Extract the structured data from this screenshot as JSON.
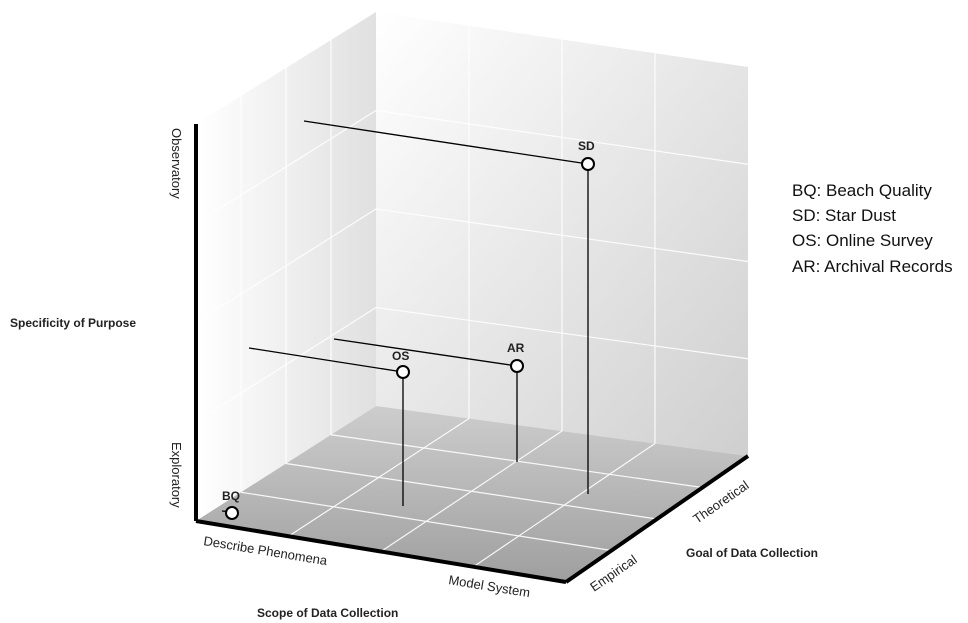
{
  "axes": {
    "vertical": {
      "title": "Specificity of Purpose",
      "low_label": "Exploratory",
      "high_label": "Observatory"
    },
    "front": {
      "title": "Scope of Data Collection",
      "low_label": "Describe Phenomena",
      "high_label": "Model System"
    },
    "depth": {
      "title": "Goal of Data Collection",
      "low_label": "Empirical",
      "high_label": "Theoretical"
    }
  },
  "points": [
    {
      "code": "BQ"
    },
    {
      "code": "OS"
    },
    {
      "code": "AR"
    },
    {
      "code": "SD"
    }
  ],
  "legend": [
    {
      "text": "BQ: Beach Quality"
    },
    {
      "text": "SD: Star Dust"
    },
    {
      "text": "OS: Online Survey"
    },
    {
      "text": "AR: Archival Records"
    }
  ]
}
